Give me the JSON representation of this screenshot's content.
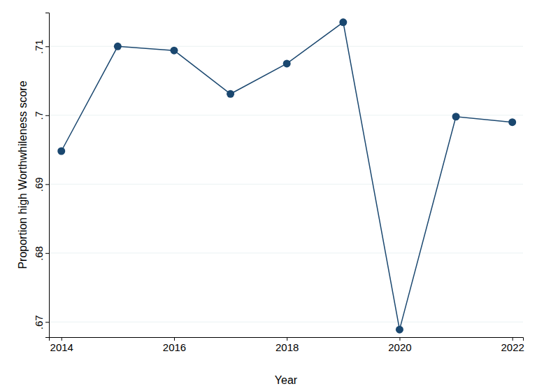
{
  "chart_data": {
    "type": "line",
    "x_label": "Year",
    "y_label": "Proportion high Worthwhileness score",
    "x": [
      2014,
      2015,
      2016,
      2017,
      2018,
      2019,
      2020,
      2021,
      2022
    ],
    "values": [
      0.6948,
      0.71,
      0.7094,
      0.7031,
      0.7075,
      0.7135,
      0.6689,
      0.6998,
      0.699
    ],
    "color": "#1a476f",
    "marker": "circle",
    "grid": true,
    "xlim": [
      2013.78,
      2022.19
    ],
    "xticks": [
      2014,
      2016,
      2018,
      2020,
      2022
    ],
    "ylim": [
      0.6678,
      0.7149
    ],
    "yticks": [
      {
        "value": 0.67,
        "label": ".67"
      },
      {
        "value": 0.68,
        "label": ".68"
      },
      {
        "value": 0.69,
        "label": ".69"
      },
      {
        "value": 0.7,
        "label": ".7"
      },
      {
        "value": 0.71,
        "label": ".71"
      }
    ]
  }
}
